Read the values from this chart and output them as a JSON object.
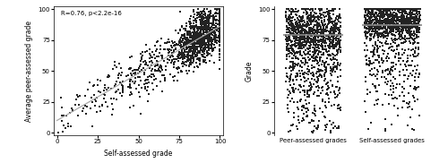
{
  "n_points": 1354,
  "p_text": "R=0.76, p<2.2e-16",
  "xlim_scatter": [
    -2,
    102
  ],
  "ylim_scatter": [
    -2,
    102
  ],
  "xticks_scatter": [
    0,
    25,
    50,
    75,
    100
  ],
  "yticks_scatter": [
    0,
    25,
    50,
    75,
    100
  ],
  "xlabel_scatter": "Self-assessed grade",
  "ylabel_scatter": "Average peer-assessed grade",
  "regression_slope": 0.76,
  "regression_intercept": 10.0,
  "peer_mean": 79.0,
  "self_mean": 87.0,
  "ylim_strip": [
    -2,
    102
  ],
  "yticks_strip": [
    0,
    25,
    50,
    75,
    100
  ],
  "ylabel_strip": "Grade",
  "strip_labels": [
    "Peer-assessed grades",
    "Self-assessed grades"
  ],
  "dot_color": "#222222",
  "dot_size": 1.2,
  "line_color": "#aaaaaa",
  "mean_line_color": "#888888",
  "bg_color": "#ffffff"
}
